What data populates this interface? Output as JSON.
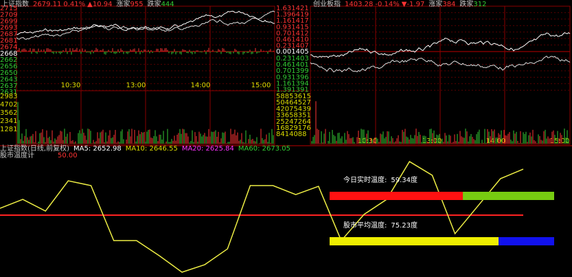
{
  "sh_panel": {
    "name": "上证指数",
    "price": "2679.11",
    "change_pct": "0.41%",
    "change": "▲10.94",
    "up_label": "涨家",
    "up_count": "955",
    "down_label": "跌家",
    "down_count": "444",
    "price_ticks": [
      "2715",
      "2709",
      "2699",
      "2693",
      "2687",
      "2681",
      "2674",
      "2668",
      "2662",
      "2656",
      "2650",
      "2643",
      "2637",
      "2631"
    ],
    "volume_ticks": [
      "2983",
      "4702",
      "3562",
      "2341",
      "1281"
    ],
    "time_labels": [
      "10:30",
      "13:00",
      "14:00",
      "15:00"
    ]
  },
  "cy_panel": {
    "name": "创业板指",
    "price": "1403.28",
    "change_pct": "-0.14%",
    "change": "▼-1.97",
    "up_label": "涨家",
    "up_count": "384",
    "down_label": "跌家",
    "down_count": "312",
    "ratio_up": [
      "1.631421",
      "1.396419",
      "1.161417",
      "0.931415",
      "0.701412",
      "0.461410",
      "0.231407"
    ],
    "ratio_mid": "0.001405",
    "ratio_down": [
      "0.231403",
      "0.461401",
      "0.701399",
      "0.931396",
      "1.161394",
      "1.391391"
    ],
    "volume_ticks": [
      "58853615",
      "50464527",
      "42075439",
      "33658351",
      "25247264",
      "16829176",
      "8414088"
    ],
    "time_labels": [
      "10:30",
      "13:00",
      "14:00",
      "15:00"
    ]
  },
  "kline_header": {
    "title": "上证指数(日线,前复权)",
    "ma5": "MA5: 2652.98",
    "ma10": "MA10: 2646.55",
    "ma20": "MA20: 2625.84",
    "ma60": "MA60: 2673.05"
  },
  "thermometer": {
    "title": "股市温度计",
    "threshold": 50,
    "threshold_label": "50.00",
    "ylim": [
      0,
      100
    ],
    "values": [
      55.7,
      63.2,
      53.4,
      78.7,
      74.7,
      28.7,
      28.7,
      16.1,
      2.3,
      8.6,
      21.8,
      74.7,
      74.7,
      67.2,
      74.1,
      28.7,
      50.6,
      63.2,
      94.8,
      83.3,
      34.5,
      57.5,
      80.5,
      88.5
    ],
    "today": {
      "label": "今日实时温度:",
      "value": 59.34,
      "value_label": "59.34度"
    },
    "average": {
      "label": "股市平均温度:",
      "value": 75.23,
      "value_label": "75.23度"
    }
  }
}
